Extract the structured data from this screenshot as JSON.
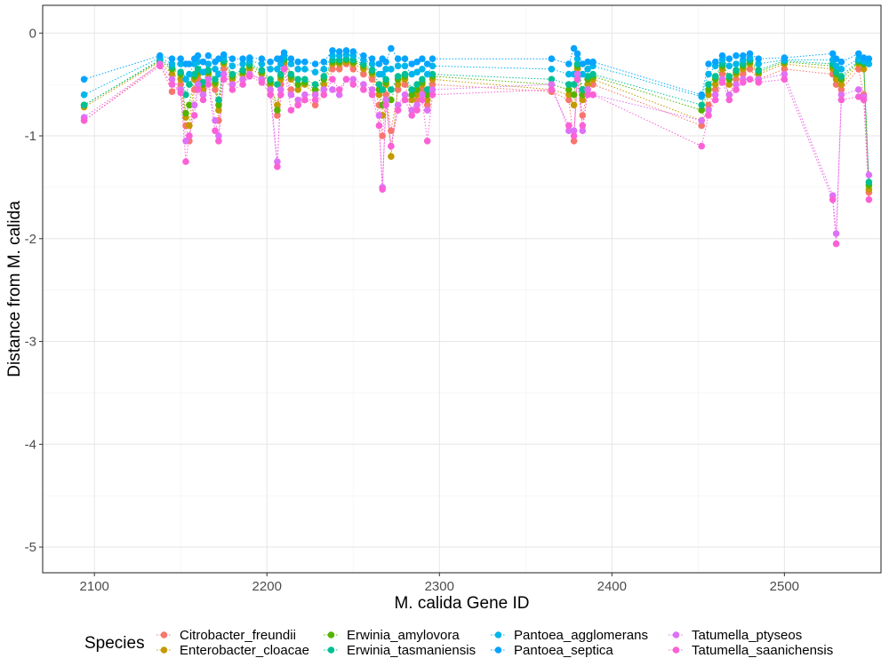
{
  "chart_data": {
    "type": "scatter",
    "title": "",
    "xlabel": "M. calida Gene ID",
    "ylabel": "Distance from M. calida",
    "xlim": [
      2070,
      2556
    ],
    "ylim": [
      -5.25,
      0.27
    ],
    "xticks": [
      2100,
      2200,
      2300,
      2400,
      2500
    ],
    "yticks": [
      0,
      -1,
      -2,
      -3,
      -4,
      -5
    ],
    "grid": true,
    "legend": {
      "title": "Species",
      "position": "bottom"
    },
    "x": [
      2094,
      2138,
      2145,
      2150,
      2153,
      2155,
      2158,
      2160,
      2163,
      2166,
      2170,
      2172,
      2175,
      2180,
      2186,
      2190,
      2197,
      2202,
      2206,
      2208,
      2210,
      2214,
      2218,
      2222,
      2228,
      2233,
      2238,
      2242,
      2246,
      2250,
      2256,
      2261,
      2265,
      2267,
      2269,
      2272,
      2276,
      2280,
      2284,
      2287,
      2290,
      2293,
      2296,
      2365,
      2375,
      2378,
      2380,
      2383,
      2386,
      2389,
      2452,
      2456,
      2460,
      2464,
      2468,
      2472,
      2476,
      2480,
      2485,
      2500,
      2528,
      2530,
      2533,
      2543,
      2546,
      2549
    ],
    "series": [
      {
        "name": "Citrobacter_freundii",
        "color": "#F8766D",
        "values": [
          -0.85,
          -0.3,
          -0.57,
          -0.5,
          -0.9,
          -1.05,
          -0.55,
          -0.45,
          -0.6,
          -0.45,
          -0.55,
          -0.85,
          -0.35,
          -0.5,
          -0.45,
          -0.4,
          -0.45,
          -0.55,
          -0.8,
          -0.5,
          -0.3,
          -0.55,
          -0.7,
          -0.65,
          -0.7,
          -0.6,
          -0.35,
          -0.35,
          -0.3,
          -0.35,
          -0.4,
          -0.45,
          -0.7,
          -1.0,
          -0.6,
          -0.95,
          -0.55,
          -0.5,
          -0.75,
          -0.65,
          -0.55,
          -0.7,
          -0.5,
          -0.57,
          -0.65,
          -1.05,
          -0.4,
          -0.8,
          -0.55,
          -0.5,
          -0.9,
          -0.7,
          -0.55,
          -0.4,
          -0.6,
          -0.45,
          -0.4,
          -0.35,
          -0.45,
          -0.35,
          -0.4,
          -0.5,
          -0.55,
          -0.35,
          -0.6,
          -1.55
        ]
      },
      {
        "name": "Enterobacter_cloacae",
        "color": "#C49A00",
        "values": [
          -0.72,
          -0.28,
          -0.4,
          -0.45,
          -0.82,
          -0.9,
          -0.45,
          -0.4,
          -0.55,
          -0.4,
          -0.5,
          -0.75,
          -0.3,
          -0.45,
          -0.4,
          -0.35,
          -0.4,
          -0.5,
          -0.7,
          -0.45,
          -0.28,
          -0.45,
          -0.55,
          -0.5,
          -0.6,
          -0.5,
          -0.3,
          -0.3,
          -0.28,
          -0.3,
          -0.35,
          -0.4,
          -0.6,
          -0.8,
          -0.5,
          -1.2,
          -0.5,
          -0.45,
          -0.65,
          -0.6,
          -0.5,
          -0.65,
          -0.45,
          -0.55,
          -0.6,
          -0.7,
          -0.35,
          -0.65,
          -0.5,
          -0.45,
          -0.85,
          -0.6,
          -0.5,
          -0.35,
          -0.5,
          -0.4,
          -0.35,
          -0.3,
          -0.4,
          -0.3,
          -0.35,
          -0.45,
          -0.5,
          -0.3,
          -0.35,
          -1.52
        ]
      },
      {
        "name": "Erwinia_amylovora",
        "color": "#53B400",
        "values": [
          -0.7,
          -0.27,
          -0.35,
          -0.4,
          -0.78,
          -0.7,
          -0.42,
          -0.38,
          -0.5,
          -0.38,
          -0.48,
          -0.7,
          -0.28,
          -0.42,
          -0.38,
          -0.32,
          -0.38,
          -0.48,
          -0.75,
          -0.42,
          -0.26,
          -0.42,
          -0.5,
          -0.48,
          -0.55,
          -0.45,
          -0.28,
          -0.28,
          -0.26,
          -0.28,
          -0.32,
          -0.38,
          -0.55,
          -0.7,
          -0.48,
          -0.65,
          -0.45,
          -0.42,
          -0.6,
          -0.55,
          -0.48,
          -0.6,
          -0.42,
          -0.5,
          -0.55,
          -0.6,
          -0.32,
          -0.6,
          -0.45,
          -0.42,
          -0.75,
          -0.55,
          -0.45,
          -0.32,
          -0.45,
          -0.38,
          -0.32,
          -0.28,
          -0.38,
          -0.28,
          -0.32,
          -0.4,
          -0.45,
          -0.28,
          -0.3,
          -1.48
        ]
      },
      {
        "name": "Erwinia_tasmaniensis",
        "color": "#00C094",
        "values": [
          -0.7,
          -0.26,
          -0.33,
          -0.38,
          -0.6,
          -0.5,
          -0.4,
          -0.35,
          -0.48,
          -0.36,
          -0.45,
          -0.65,
          -0.27,
          -0.4,
          -0.36,
          -0.3,
          -0.36,
          -0.45,
          -0.5,
          -0.4,
          -0.25,
          -0.4,
          -0.45,
          -0.45,
          -0.5,
          -0.42,
          -0.26,
          -0.26,
          -0.25,
          -0.26,
          -0.3,
          -0.36,
          -0.5,
          -0.55,
          -0.45,
          -0.55,
          -0.42,
          -0.4,
          -0.55,
          -0.5,
          -0.45,
          -0.55,
          -0.4,
          -0.45,
          -0.5,
          -0.5,
          -0.3,
          -0.55,
          -0.42,
          -0.4,
          -0.7,
          -0.5,
          -0.42,
          -0.3,
          -0.42,
          -0.36,
          -0.3,
          -0.26,
          -0.36,
          -0.27,
          -0.3,
          -0.38,
          -0.42,
          -0.27,
          -0.28,
          -1.45
        ]
      },
      {
        "name": "Pantoea_agglomerans",
        "color": "#00B6EB",
        "values": [
          -0.6,
          -0.24,
          -0.3,
          -0.3,
          -0.45,
          -0.4,
          -0.3,
          -0.28,
          -0.38,
          -0.3,
          -0.35,
          -0.4,
          -0.24,
          -0.32,
          -0.3,
          -0.27,
          -0.3,
          -0.35,
          -0.35,
          -0.3,
          -0.22,
          -0.3,
          -0.35,
          -0.35,
          -0.38,
          -0.35,
          -0.22,
          -0.22,
          -0.21,
          -0.22,
          -0.26,
          -0.3,
          -0.4,
          -0.4,
          -0.35,
          -0.35,
          -0.32,
          -0.32,
          -0.4,
          -0.38,
          -0.35,
          -0.4,
          -0.32,
          -0.35,
          -0.4,
          -0.4,
          -0.25,
          -0.4,
          -0.35,
          -0.32,
          -0.62,
          -0.4,
          -0.32,
          -0.26,
          -0.32,
          -0.3,
          -0.26,
          -0.24,
          -0.3,
          -0.26,
          -0.26,
          -0.32,
          -0.35,
          -0.25,
          -0.27,
          -0.3
        ]
      },
      {
        "name": "Pantoea_septica",
        "color": "#06A4FF",
        "values": [
          -0.45,
          -0.22,
          -0.25,
          -0.25,
          -0.3,
          -0.3,
          -0.25,
          -0.22,
          -0.28,
          -0.22,
          -0.28,
          -0.25,
          -0.21,
          -0.25,
          -0.25,
          -0.24,
          -0.25,
          -0.28,
          -0.25,
          -0.25,
          -0.19,
          -0.25,
          -0.28,
          -0.28,
          -0.3,
          -0.28,
          -0.17,
          -0.18,
          -0.17,
          -0.18,
          -0.22,
          -0.25,
          -0.3,
          -0.25,
          -0.28,
          -0.15,
          -0.25,
          -0.25,
          -0.3,
          -0.28,
          -0.25,
          -0.3,
          -0.25,
          -0.25,
          -0.3,
          -0.15,
          -0.2,
          -0.3,
          -0.28,
          -0.28,
          -0.6,
          -0.3,
          -0.28,
          -0.22,
          -0.25,
          -0.22,
          -0.22,
          -0.2,
          -0.25,
          -0.24,
          -0.2,
          -0.25,
          -0.28,
          -0.2,
          -0.24,
          -0.25
        ]
      },
      {
        "name": "Tatumella_ptyseos",
        "color": "#DF70F8",
        "values": [
          -0.82,
          -0.3,
          -0.45,
          -0.55,
          -1.05,
          -1.0,
          -0.7,
          -0.5,
          -0.6,
          -0.45,
          -0.85,
          -1.0,
          -0.4,
          -0.5,
          -0.45,
          -0.4,
          -0.45,
          -0.55,
          -1.25,
          -0.55,
          -0.35,
          -0.6,
          -0.65,
          -0.6,
          -0.6,
          -0.55,
          -0.55,
          -0.6,
          -0.45,
          -0.45,
          -0.5,
          -0.55,
          -0.8,
          -1.5,
          -0.65,
          -1.1,
          -0.7,
          -0.6,
          -0.75,
          -0.7,
          -0.6,
          -0.75,
          -0.55,
          -0.5,
          -0.95,
          -0.95,
          -0.4,
          -0.95,
          -0.55,
          -0.6,
          -0.85,
          -0.75,
          -0.6,
          -0.45,
          -0.6,
          -0.5,
          -0.45,
          -0.45,
          -0.45,
          -0.4,
          -1.58,
          -1.95,
          -0.6,
          -0.55,
          -0.62,
          -1.38
        ]
      },
      {
        "name": "Tatumella_saanichensis",
        "color": "#FB61D7",
        "values": [
          -0.85,
          -0.32,
          -0.5,
          -0.58,
          -1.25,
          -1.0,
          -0.8,
          -0.55,
          -0.65,
          -0.5,
          -0.95,
          -1.05,
          -0.45,
          -0.55,
          -0.5,
          -0.42,
          -0.48,
          -0.6,
          -1.3,
          -0.6,
          -0.35,
          -0.75,
          -0.7,
          -0.65,
          -0.65,
          -0.6,
          -0.45,
          -0.55,
          -0.45,
          -0.5,
          -0.55,
          -0.6,
          -0.9,
          -1.52,
          -0.7,
          -1.1,
          -0.75,
          -0.65,
          -0.8,
          -0.75,
          -0.65,
          -1.05,
          -0.6,
          -0.55,
          -0.9,
          -1.0,
          -0.45,
          -0.9,
          -0.6,
          -0.6,
          -1.1,
          -0.8,
          -0.65,
          -0.48,
          -0.65,
          -0.55,
          -0.48,
          -0.45,
          -0.48,
          -0.45,
          -1.62,
          -2.05,
          -0.65,
          -0.62,
          -0.65,
          -1.62
        ]
      }
    ]
  }
}
